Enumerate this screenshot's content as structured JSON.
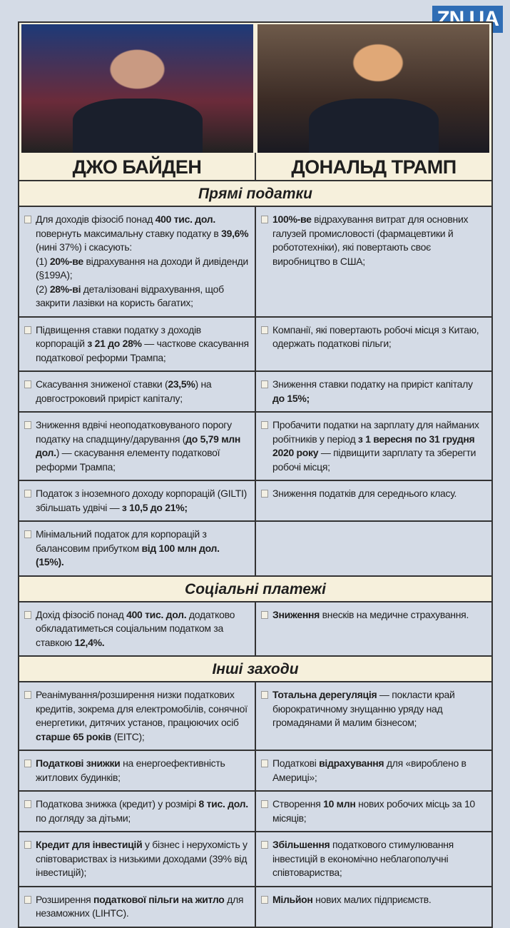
{
  "logo": "ZN,UA",
  "candidates": [
    {
      "name": "ДЖО БАЙДЕН"
    },
    {
      "name": "ДОНАЛЬД ТРАМП"
    }
  ],
  "sections": [
    {
      "title": "Прямі податки",
      "rows": [
        [
          [
            {
              "t": "Для доходів фізосіб понад "
            },
            {
              "t": "400 тис. дол.",
              "b": true
            },
            {
              "t": " повернуть максимальну ставку податку в "
            },
            {
              "t": "39,6%",
              "b": true
            },
            {
              "t": " (нині 37%) і скасують:\n(1) "
            },
            {
              "t": "20%-ве",
              "b": true
            },
            {
              "t": " відрахування на доходи й дивіденди (§199A);\n(2) "
            },
            {
              "t": "28%-ві",
              "b": true
            },
            {
              "t": " деталізовані відрахування, щоб закрити лазівки на користь багатих;"
            }
          ],
          [
            {
              "t": "100%-ве",
              "b": true
            },
            {
              "t": " відрахування витрат для основних галузей промисловості (фармацевтики й робототехніки), які повертають своє виробництво в США;"
            }
          ]
        ],
        [
          [
            {
              "t": "Підвищення ставки податку з доходів корпорацій "
            },
            {
              "t": "з 21 до 28%",
              "b": true
            },
            {
              "t": " — часткове скасування податкової реформи Трампа;"
            }
          ],
          [
            {
              "t": "Компанії, які повертають робочі місця з Китаю, одержать податкові пільги;"
            }
          ]
        ],
        [
          [
            {
              "t": "Скасування зниженої ставки ("
            },
            {
              "t": "23,5%",
              "b": true
            },
            {
              "t": ") на довгостроковий приріст капіталу;"
            }
          ],
          [
            {
              "t": "Зниження ставки податку на приріст капіталу "
            },
            {
              "t": "до 15%;",
              "b": true
            }
          ]
        ],
        [
          [
            {
              "t": "Зниження вдвічі неоподатковуваного порогу податку на спадщину/дарування ("
            },
            {
              "t": "до 5,79 млн дол.",
              "b": true
            },
            {
              "t": ") — скасування елементу податкової реформи Трампа;"
            }
          ],
          [
            {
              "t": "Пробачити податки на зарплату для найманих робітників у період "
            },
            {
              "t": "з 1 вересня по 31 грудня 2020 року",
              "b": true
            },
            {
              "t": " — підвищити зарплату та зберегти робочі місця;"
            }
          ]
        ],
        [
          [
            {
              "t": "Податок з іноземного доходу корпорацій (GILTI) збільшать удвічі — "
            },
            {
              "t": "з 10,5 до 21%;",
              "b": true
            }
          ],
          [
            {
              "t": "Зниження податків для середнього класу."
            }
          ]
        ],
        [
          [
            {
              "t": "Мінімальний податок для корпорацій з балансовим прибутком "
            },
            {
              "t": "від 100 млн дол. (15%).",
              "b": true
            }
          ],
          []
        ]
      ]
    },
    {
      "title": "Соціальні платежі",
      "rows": [
        [
          [
            {
              "t": "Дохід фізосіб понад "
            },
            {
              "t": "400 тис. дол.",
              "b": true
            },
            {
              "t": " додатково обкладатиметься соціальним податком за ставкою "
            },
            {
              "t": "12,4%.",
              "b": true
            }
          ],
          [
            {
              "t": "Зниження",
              "b": true
            },
            {
              "t": " внесків на медичне страхування."
            }
          ]
        ]
      ]
    },
    {
      "title": "Інші заходи",
      "rows": [
        [
          [
            {
              "t": "Реанімування/розширення низки податкових кредитів, зокрема для електромобілів, сонячної енергетики, дитячих установ, працюючих осіб "
            },
            {
              "t": "старше 65 років",
              "b": true
            },
            {
              "t": " (EITC);"
            }
          ],
          [
            {
              "t": "Тотальна дерегуляція",
              "b": true
            },
            {
              "t": " — покласти край бюрократичному знущанню уряду над громадянами й малим бізнесом;"
            }
          ]
        ],
        [
          [
            {
              "t": "Податкові знижки",
              "b": true
            },
            {
              "t": " на енергоефективність житлових будинків;"
            }
          ],
          [
            {
              "t": "Податкові "
            },
            {
              "t": "відрахування",
              "b": true
            },
            {
              "t": " для «вироблено в Америці»;"
            }
          ]
        ],
        [
          [
            {
              "t": "Податкова знижка (кредит) у розмірі "
            },
            {
              "t": "8 тис. дол.",
              "b": true
            },
            {
              "t": " по догляду за дітьми;"
            }
          ],
          [
            {
              "t": "Створення "
            },
            {
              "t": "10 млн",
              "b": true
            },
            {
              "t": " нових робочих місць за 10 місяців;"
            }
          ]
        ],
        [
          [
            {
              "t": "Кредит для інвестицій",
              "b": true
            },
            {
              "t": " у бізнес і нерухомість у співтовариствах із низькими доходами (39% від інвестицій);"
            }
          ],
          [
            {
              "t": "Збільшення",
              "b": true
            },
            {
              "t": " податкового стимулювання інвестицій в економічно неблагополучні співтовариства;"
            }
          ]
        ],
        [
          [
            {
              "t": "Розширення "
            },
            {
              "t": "податкової пільги на житло",
              "b": true
            },
            {
              "t": " для незаможних (LIHTC)."
            }
          ],
          [
            {
              "t": "Мільйон",
              "b": true
            },
            {
              "t": " нових малих підприємств."
            }
          ]
        ]
      ]
    }
  ]
}
